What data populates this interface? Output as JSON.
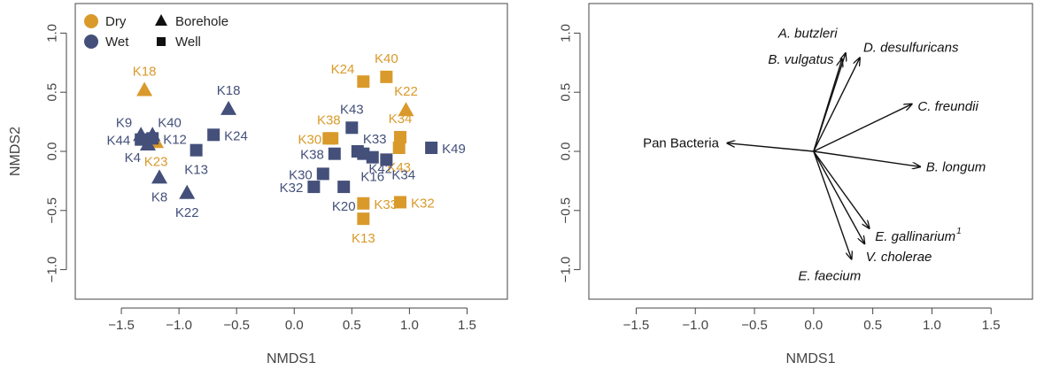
{
  "colors": {
    "dry": "#D99A2B",
    "wet": "#44507A",
    "axis": "#444444",
    "vector": "#111111"
  },
  "chart_data": [
    {
      "type": "scatter",
      "xlabel": "NMDS1",
      "ylabel": "NMDS2",
      "xlim": [
        -1.9,
        1.85
      ],
      "ylim": [
        -1.25,
        1.25
      ],
      "xticks": [
        -1.5,
        -1.0,
        -0.5,
        0.0,
        0.5,
        1.0,
        1.5
      ],
      "yticks": [
        -1.0,
        -0.5,
        0.0,
        0.5,
        1.0
      ],
      "xtick_labels": [
        "−1.5",
        "−1.0",
        "−0.5",
        "0.0",
        "0.5",
        "1.0",
        "1.5"
      ],
      "ytick_labels": [
        "−1.0",
        "−0.5",
        "0.0",
        "0.5",
        "1.0"
      ],
      "legend": {
        "position": "top-left",
        "colors": [
          {
            "label": "Dry",
            "group": "dry"
          },
          {
            "label": "Wet",
            "group": "wet"
          }
        ],
        "shapes": [
          {
            "label": "Borehole",
            "shape": "triangle"
          },
          {
            "label": "Well",
            "shape": "square"
          }
        ]
      },
      "points": [
        {
          "label": "K18",
          "group": "dry",
          "shape": "triangle",
          "x": -1.3,
          "y": 0.52,
          "lp": "above"
        },
        {
          "label": "K23",
          "group": "dry",
          "shape": "triangle",
          "x": -1.2,
          "y": 0.08,
          "lp": "below"
        },
        {
          "label": "K24",
          "group": "dry",
          "shape": "square",
          "x": 0.6,
          "y": 0.59,
          "lp": "aboveleft"
        },
        {
          "label": "K40",
          "group": "dry",
          "shape": "square",
          "x": 0.8,
          "y": 0.63,
          "lp": "above"
        },
        {
          "label": "K22",
          "group": "dry",
          "shape": "triangle",
          "x": 0.97,
          "y": 0.35,
          "lp": "above"
        },
        {
          "label": "K38",
          "group": "dry",
          "shape": "square",
          "x": 0.3,
          "y": 0.11,
          "lp": "above"
        },
        {
          "label": "K30",
          "group": "dry",
          "shape": "square",
          "x": 0.33,
          "y": 0.11,
          "lp": "left"
        },
        {
          "label": "K34",
          "group": "dry",
          "shape": "square",
          "x": 0.92,
          "y": 0.12,
          "lp": "above"
        },
        {
          "label": "K43",
          "group": "dry",
          "shape": "square",
          "x": 0.91,
          "y": 0.03,
          "lp": "below"
        },
        {
          "label": "K33",
          "group": "dry",
          "shape": "square",
          "x": 0.6,
          "y": -0.44,
          "lp": "right"
        },
        {
          "label": "K32",
          "group": "dry",
          "shape": "square",
          "x": 0.92,
          "y": -0.43,
          "lp": "right"
        },
        {
          "label": "K13",
          "group": "dry",
          "shape": "square",
          "x": 0.6,
          "y": -0.57,
          "lp": "below"
        },
        {
          "label": "K9",
          "group": "wet",
          "shape": "triangle",
          "x": -1.33,
          "y": 0.14,
          "lp": "aboveleft"
        },
        {
          "label": "K40",
          "group": "wet",
          "shape": "triangle",
          "x": -1.23,
          "y": 0.14,
          "lp": "aboveright"
        },
        {
          "label": "K44",
          "group": "wet",
          "shape": "square",
          "x": -1.33,
          "y": 0.1,
          "lp": "left"
        },
        {
          "label": "K12",
          "group": "wet",
          "shape": "square",
          "x": -1.23,
          "y": 0.11,
          "lp": "right"
        },
        {
          "label": "K4",
          "group": "wet",
          "shape": "triangle",
          "x": -1.27,
          "y": 0.06,
          "lp": "belowleft"
        },
        {
          "label": "K8",
          "group": "wet",
          "shape": "triangle",
          "x": -1.17,
          "y": -0.22,
          "lp": "below"
        },
        {
          "label": "K22",
          "group": "wet",
          "shape": "triangle",
          "x": -0.93,
          "y": -0.35,
          "lp": "below"
        },
        {
          "label": "K13",
          "group": "wet",
          "shape": "square",
          "x": -0.85,
          "y": 0.01,
          "lp": "below"
        },
        {
          "label": "K24",
          "group": "wet",
          "shape": "square",
          "x": -0.7,
          "y": 0.14,
          "lp": "right"
        },
        {
          "label": "K18",
          "group": "wet",
          "shape": "triangle",
          "x": -0.57,
          "y": 0.36,
          "lp": "above"
        },
        {
          "label": "K43",
          "group": "wet",
          "shape": "square",
          "x": 0.5,
          "y": 0.2,
          "lp": "above"
        },
        {
          "label": "K33",
          "group": "wet",
          "shape": "square",
          "x": 0.55,
          "y": 0.0,
          "lp": "aboveright"
        },
        {
          "label": "K38",
          "group": "wet",
          "shape": "square",
          "x": 0.35,
          "y": -0.02,
          "lp": "left"
        },
        {
          "label": "K42",
          "group": "wet",
          "shape": "square",
          "x": 0.6,
          "y": -0.02,
          "lp": "belowright"
        },
        {
          "label": "K16",
          "group": "wet",
          "shape": "square",
          "x": 0.68,
          "y": -0.05,
          "lp": "below"
        },
        {
          "label": "K34",
          "group": "wet",
          "shape": "square",
          "x": 0.8,
          "y": -0.07,
          "lp": "belowright"
        },
        {
          "label": "K49",
          "group": "wet",
          "shape": "square",
          "x": 1.19,
          "y": 0.03,
          "lp": "right"
        },
        {
          "label": "K30",
          "group": "wet",
          "shape": "square",
          "x": 0.25,
          "y": -0.19,
          "lp": "left"
        },
        {
          "label": "K32",
          "group": "wet",
          "shape": "square",
          "x": 0.17,
          "y": -0.3,
          "lp": "left"
        },
        {
          "label": "K20",
          "group": "wet",
          "shape": "square",
          "x": 0.43,
          "y": -0.3,
          "lp": "below"
        }
      ]
    },
    {
      "type": "biplot",
      "xlabel": "NMDS1",
      "ylabel": "",
      "xlim": [
        -1.9,
        1.85
      ],
      "ylim": [
        -1.25,
        1.25
      ],
      "xticks": [
        -1.5,
        -1.0,
        -0.5,
        0.0,
        0.5,
        1.0,
        1.5
      ],
      "yticks": [
        -1.0,
        -0.5,
        0.0,
        0.5,
        1.0
      ],
      "xtick_labels": [
        "−1.5",
        "−1.0",
        "−0.5",
        "0.0",
        "0.5",
        "1.0",
        "1.5"
      ],
      "ytick_labels": [
        "−1.0",
        "−0.5",
        "0.0",
        "0.5",
        "1.0"
      ],
      "vectors": [
        {
          "label": "A. butzleri",
          "italic": true,
          "x": 0.27,
          "y": 0.83,
          "lx": 0.2,
          "ly": 1.0,
          "anchor": "end"
        },
        {
          "label": "B. vulgatus",
          "italic": true,
          "x": 0.24,
          "y": 0.78,
          "lx": 0.17,
          "ly": 0.78,
          "anchor": "end"
        },
        {
          "label": "D. desulfuricans",
          "italic": true,
          "x": 0.39,
          "y": 0.79,
          "lx": 0.42,
          "ly": 0.88,
          "anchor": "start"
        },
        {
          "label": "C. freundii",
          "italic": true,
          "x": 0.83,
          "y": 0.4,
          "lx": 0.88,
          "ly": 0.38,
          "anchor": "start"
        },
        {
          "label": "Pan Bacteria",
          "italic": false,
          "x": -0.73,
          "y": 0.07,
          "lx": -0.8,
          "ly": 0.07,
          "anchor": "end"
        },
        {
          "label": "B. longum",
          "italic": true,
          "x": 0.9,
          "y": -0.13,
          "lx": 0.95,
          "ly": -0.13,
          "anchor": "start"
        },
        {
          "label": "E. gallinarium",
          "italic": true,
          "sup": "1",
          "x": 0.47,
          "y": -0.65,
          "lx": 0.52,
          "ly": -0.72,
          "anchor": "start"
        },
        {
          "label": "V. cholerae",
          "italic": true,
          "x": 0.43,
          "y": -0.78,
          "lx": 0.44,
          "ly": -0.89,
          "anchor": "start"
        },
        {
          "label": "E. faecium",
          "italic": true,
          "x": 0.32,
          "y": -0.91,
          "lx": 0.4,
          "ly": -1.05,
          "anchor": "end"
        }
      ]
    }
  ]
}
